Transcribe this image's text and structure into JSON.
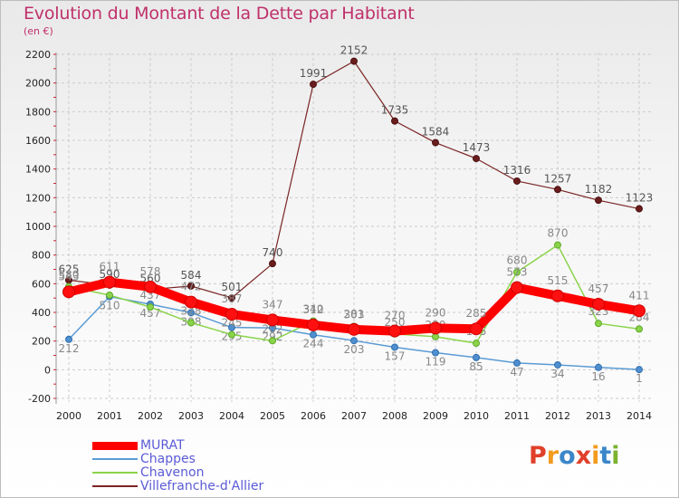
{
  "title": "Evolution du Montant de la Dette par Habitant",
  "subtitle": "(en €)",
  "logo": {
    "text": "Proxiti",
    "colors": [
      "#e0402a",
      "#f29b1e",
      "#3a86c9",
      "#e0402a",
      "#f29b1e",
      "#3a86c9",
      "#7ab32e"
    ]
  },
  "chart_data": {
    "type": "line",
    "title": "Evolution du Montant de la Dette par Habitant",
    "subtitle": "(en €)",
    "x": [
      "2000",
      "2001",
      "2002",
      "2003",
      "2004",
      "2005",
      "2006",
      "2007",
      "2008",
      "2009",
      "2010",
      "2011",
      "2012",
      "2013",
      "2014"
    ],
    "ylim": [
      -200,
      2200
    ],
    "yticks": [
      -200,
      0,
      200,
      400,
      600,
      800,
      1000,
      1200,
      1400,
      1600,
      1800,
      2000,
      2200
    ],
    "grid": true,
    "legend": "bottom-left",
    "series": [
      {
        "name": "MURAT",
        "color": "#ff0000",
        "values": [
          543,
          611,
          578,
          472,
          387,
          347,
          312,
          281,
          270,
          290,
          285,
          573,
          515,
          457,
          411
        ]
      },
      {
        "name": "Chappes",
        "color": "#5a9bd5",
        "values": [
          212,
          510,
          457,
          398,
          295,
          292,
          244,
          203,
          157,
          119,
          85,
          47,
          34,
          16,
          1
        ]
      },
      {
        "name": "Chavenon",
        "color": "#8bd44a",
        "values": [
          580,
          520,
          437,
          328,
          245,
          202,
          340,
          303,
          250,
          230,
          185,
          680,
          870,
          323,
          284
        ]
      },
      {
        "name": "Villefranche-d'Allier",
        "color": "#7b2424",
        "values": [
          625,
          590,
          560,
          584,
          501,
          740,
          1991,
          2152,
          1735,
          1584,
          1473,
          1316,
          1257,
          1182,
          1123
        ]
      }
    ]
  }
}
